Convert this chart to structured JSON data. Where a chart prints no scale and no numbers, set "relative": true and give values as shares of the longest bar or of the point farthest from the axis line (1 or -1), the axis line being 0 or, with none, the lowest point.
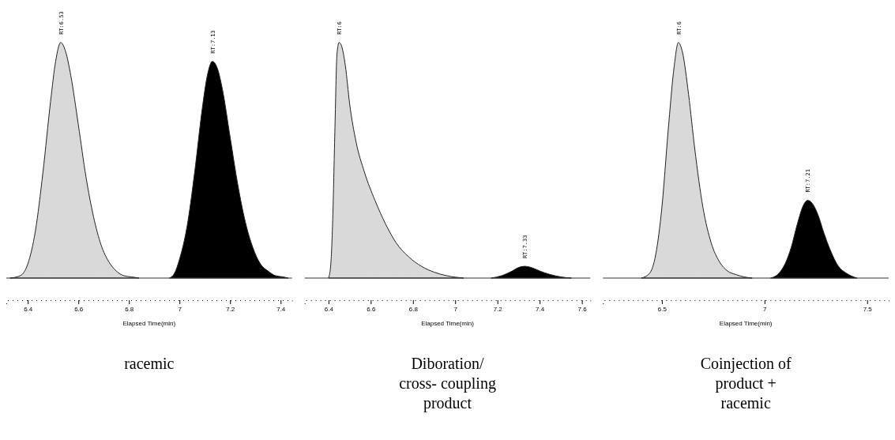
{
  "chart_data": [
    {
      "type": "area",
      "title": "racemic",
      "xlabel": "Elapsed Time(min)",
      "relative": true,
      "xlim": [
        6.315,
        7.445
      ],
      "xticks": [
        6.4,
        6.6,
        6.8,
        7,
        7.2,
        7.4
      ],
      "series": [
        {
          "color": "#d9d9d9",
          "x": [
            6.33,
            6.37,
            6.4,
            6.43,
            6.46,
            6.49,
            6.51,
            6.53,
            6.55,
            6.57,
            6.6,
            6.63,
            6.66,
            6.69,
            6.72,
            6.75,
            6.78,
            6.81,
            6.84
          ],
          "values": [
            0,
            0.01,
            0.06,
            0.2,
            0.45,
            0.75,
            0.92,
            1,
            0.96,
            0.86,
            0.65,
            0.43,
            0.26,
            0.14,
            0.07,
            0.03,
            0.01,
            0.005,
            0
          ]
        },
        {
          "color": "#000000",
          "x": [
            6.96,
            6.98,
            7.0,
            7.03,
            7.06,
            7.09,
            7.11,
            7.13,
            7.15,
            7.17,
            7.2,
            7.23,
            7.26,
            7.29,
            7.32,
            7.35,
            7.38,
            7.41,
            7.43
          ],
          "values": [
            0,
            0.02,
            0.08,
            0.22,
            0.45,
            0.72,
            0.86,
            0.92,
            0.89,
            0.8,
            0.6,
            0.4,
            0.24,
            0.13,
            0.06,
            0.03,
            0.01,
            0.005,
            0
          ]
        }
      ],
      "annotations": [
        {
          "text": "RT:6.53",
          "x": 6.53,
          "y": 1
        },
        {
          "text": "RT:7.13",
          "x": 7.13,
          "y": 0.92
        }
      ]
    },
    {
      "type": "area",
      "title": "Diboration/ cross- coupling product",
      "xlabel": "Elapsed Time(min)",
      "relative": true,
      "xlim": [
        6.287,
        7.64
      ],
      "xticks": [
        6.4,
        6.6,
        6.8,
        7,
        7.2,
        7.4,
        7.6
      ],
      "series": [
        {
          "color": "#d9d9d9",
          "x": [
            6.4,
            6.41,
            6.42,
            6.43,
            6.44,
            6.45,
            6.46,
            6.48,
            6.5,
            6.53,
            6.57,
            6.62,
            6.67,
            6.72,
            6.78,
            6.84,
            6.9,
            6.96,
            7.04
          ],
          "values": [
            0,
            0.05,
            0.25,
            0.62,
            0.95,
            1,
            0.99,
            0.9,
            0.74,
            0.58,
            0.45,
            0.33,
            0.23,
            0.15,
            0.09,
            0.05,
            0.025,
            0.01,
            0
          ]
        },
        {
          "color": "#000000",
          "x": [
            7.17,
            7.22,
            7.27,
            7.3,
            7.33,
            7.36,
            7.4,
            7.45,
            7.5,
            7.55
          ],
          "values": [
            0,
            0.01,
            0.03,
            0.045,
            0.05,
            0.045,
            0.03,
            0.015,
            0.005,
            0
          ]
        }
      ],
      "annotations": [
        {
          "text": "RT:6",
          "x": 6.45,
          "y": 1
        },
        {
          "text": "RT:7.33",
          "x": 7.33,
          "y": 0.05
        }
      ]
    },
    {
      "type": "area",
      "title": "Coinjection of product + racemic",
      "xlabel": "Elapsed Time(min)",
      "relative": true,
      "xlim": [
        6.213,
        7.605
      ],
      "xticks": [
        6.5,
        7,
        7.5
      ],
      "series": [
        {
          "color": "#d9d9d9",
          "x": [
            6.4,
            6.44,
            6.47,
            6.5,
            6.53,
            6.56,
            6.58,
            6.6,
            6.63,
            6.66,
            6.7,
            6.74,
            6.78,
            6.82,
            6.86,
            6.9,
            6.94
          ],
          "values": [
            0,
            0.02,
            0.1,
            0.3,
            0.62,
            0.9,
            1,
            0.96,
            0.78,
            0.55,
            0.3,
            0.15,
            0.07,
            0.03,
            0.015,
            0.005,
            0
          ]
        },
        {
          "color": "#000000",
          "x": [
            7.03,
            7.07,
            7.1,
            7.13,
            7.16,
            7.19,
            7.21,
            7.23,
            7.26,
            7.29,
            7.32,
            7.36,
            7.4,
            7.45
          ],
          "values": [
            0,
            0.02,
            0.06,
            0.13,
            0.23,
            0.31,
            0.33,
            0.32,
            0.27,
            0.19,
            0.12,
            0.05,
            0.02,
            0
          ]
        }
      ],
      "annotations": [
        {
          "text": "RT:6",
          "x": 6.58,
          "y": 1
        },
        {
          "text": "RT:7.21",
          "x": 7.21,
          "y": 0.33
        }
      ]
    }
  ]
}
